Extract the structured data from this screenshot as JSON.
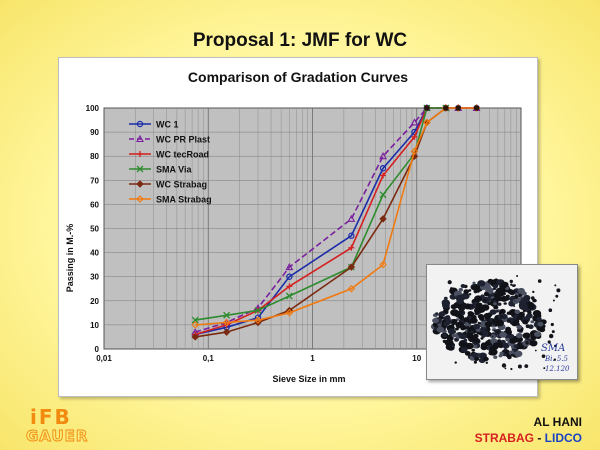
{
  "slide": {
    "title": "Proposal 1: JMF for WC",
    "footer_name": "AL HANI",
    "footer_org1": "STRABAG",
    "footer_dash": " - ",
    "footer_org2": "LIDCO",
    "logo_top": "iFB",
    "logo_bottom": "GAUER"
  },
  "photo": {
    "label_lines": [
      "SMA",
      "Bi. 5.5",
      "12.120"
    ],
    "icon": "aggregate-sample-photo"
  },
  "chart_data": {
    "type": "line",
    "title": "Comparison of Gradation Curves",
    "xlabel": "Sieve Size in mm",
    "ylabel": "Passing in M.-%",
    "xscale": "log",
    "xlim": [
      0.01,
      100
    ],
    "ylim": [
      0,
      100
    ],
    "x_tick_labels": [
      "0,01",
      "0,1",
      "1",
      "10"
    ],
    "x_tick_values": [
      0.01,
      0.1,
      1,
      10
    ],
    "y_ticks": [
      0,
      10,
      20,
      30,
      40,
      50,
      60,
      70,
      80,
      90,
      100
    ],
    "grid": true,
    "legend_placement": "top-left",
    "series": [
      {
        "name": "WC 1",
        "color": "#1b2ca8",
        "marker": "circle",
        "dash": false,
        "x": [
          0.075,
          0.15,
          0.3,
          0.6,
          2.36,
          4.75,
          9.5,
          12.5,
          19,
          25,
          37.5
        ],
        "y": [
          6,
          9,
          13,
          30,
          47,
          75,
          90,
          100,
          100,
          100,
          100
        ]
      },
      {
        "name": "WC PR Plast",
        "color": "#7a1f9e",
        "marker": "triangle",
        "dash": true,
        "x": [
          0.075,
          0.15,
          0.3,
          0.6,
          2.36,
          4.75,
          9.5,
          12.5,
          19,
          25,
          37.5
        ],
        "y": [
          7,
          11,
          17,
          34,
          54,
          80,
          94,
          100,
          100,
          100,
          100
        ]
      },
      {
        "name": "WC tecRoad",
        "color": "#d42020",
        "marker": "plus",
        "dash": false,
        "x": [
          0.075,
          0.15,
          0.3,
          0.6,
          2.36,
          4.75,
          9.5,
          12.5,
          19,
          25,
          37.5
        ],
        "y": [
          6,
          10,
          16,
          26,
          42,
          72,
          88,
          100,
          100,
          100,
          100
        ]
      },
      {
        "name": "SMA Via",
        "color": "#2e8b2e",
        "marker": "x",
        "dash": false,
        "x": [
          0.075,
          0.15,
          0.3,
          0.6,
          2.36,
          4.75,
          9.5,
          12.5,
          19
        ],
        "y": [
          12,
          14,
          16,
          22,
          34,
          64,
          81,
          100,
          100
        ]
      },
      {
        "name": "WC Strabag",
        "color": "#7a2a10",
        "marker": "diamond",
        "dash": false,
        "x": [
          0.075,
          0.15,
          0.3,
          0.6,
          2.36,
          4.75,
          9.5,
          12.5,
          19
        ],
        "y": [
          5,
          7,
          11,
          16,
          34,
          54,
          80,
          94,
          100
        ]
      },
      {
        "name": "SMA Strabag",
        "color": "#f07a10",
        "marker": "diamond-open",
        "dash": false,
        "x": [
          0.075,
          0.15,
          0.3,
          0.6,
          2.36,
          4.75,
          9.5,
          12.5,
          19,
          25,
          37.5
        ],
        "y": [
          10,
          11,
          12,
          15,
          25,
          35,
          82,
          94,
          100,
          100,
          100
        ]
      }
    ]
  }
}
